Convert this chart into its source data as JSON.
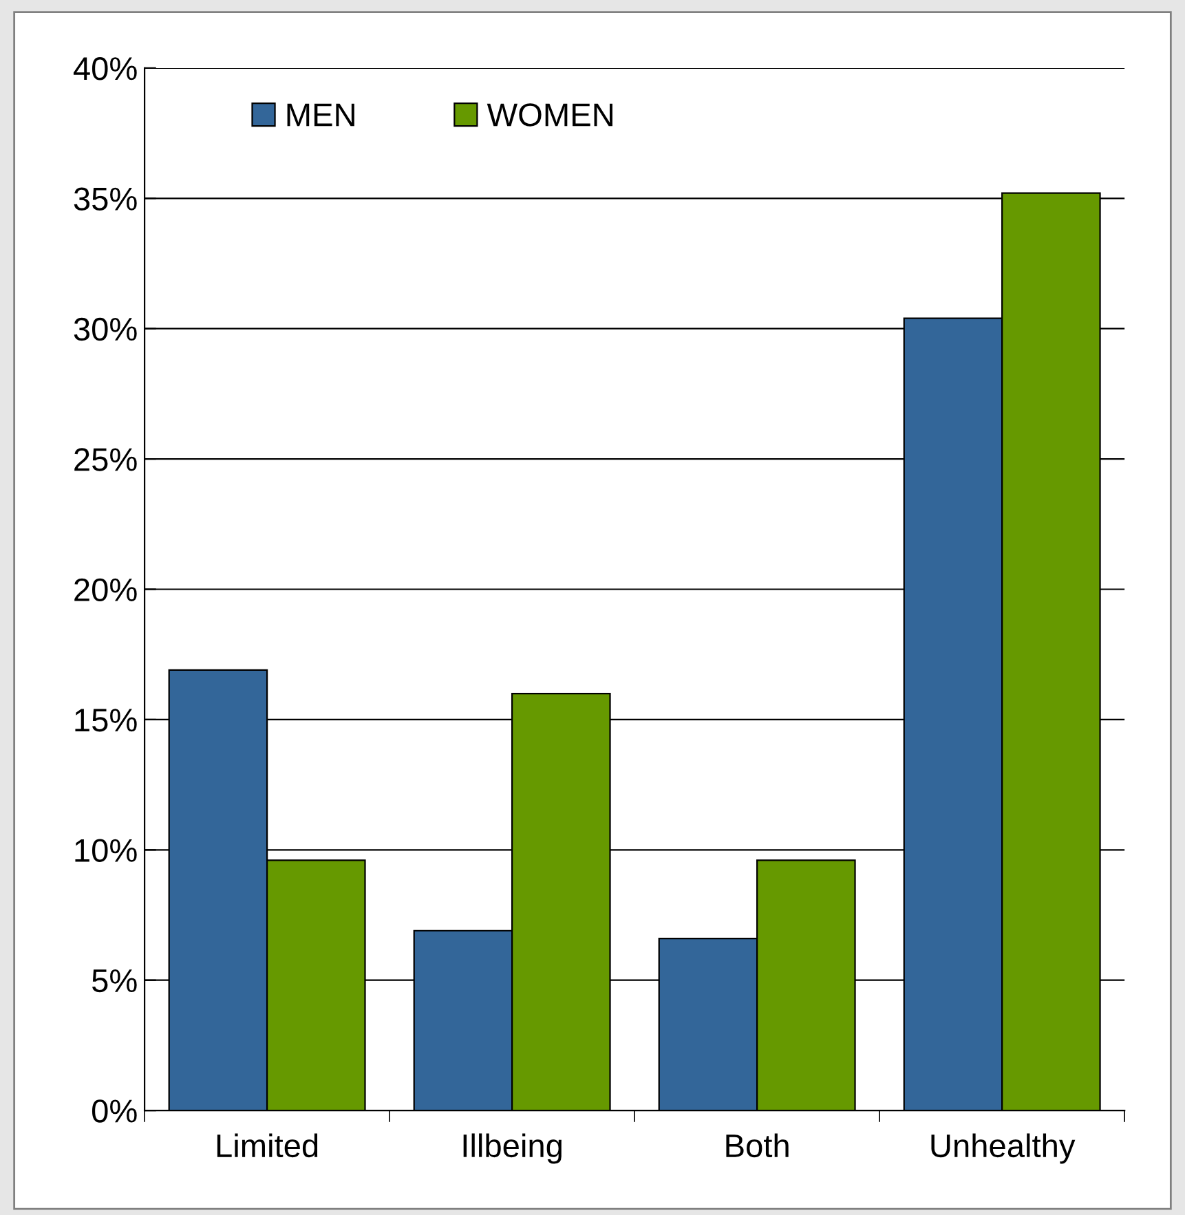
{
  "chart_data": {
    "type": "bar",
    "categories": [
      "Limited",
      "Illbeing",
      "Both",
      "Unhealthy"
    ],
    "series": [
      {
        "name": "MEN",
        "color": "#336699",
        "values": [
          16.9,
          6.9,
          6.6,
          30.4
        ]
      },
      {
        "name": "WOMEN",
        "color": "#669900",
        "values": [
          9.6,
          16.0,
          9.6,
          35.2
        ]
      }
    ],
    "ylim": [
      0,
      40
    ],
    "yticks": [
      {
        "value": 0,
        "label": "0%"
      },
      {
        "value": 5,
        "label": "5%"
      },
      {
        "value": 10,
        "label": "10%"
      },
      {
        "value": 15,
        "label": "15%"
      },
      {
        "value": 20,
        "label": "20%"
      },
      {
        "value": 25,
        "label": "25%"
      },
      {
        "value": 30,
        "label": "30%"
      },
      {
        "value": 35,
        "label": "35%"
      },
      {
        "value": 40,
        "label": "40%"
      }
    ],
    "grid": "y",
    "legend": "top left"
  }
}
